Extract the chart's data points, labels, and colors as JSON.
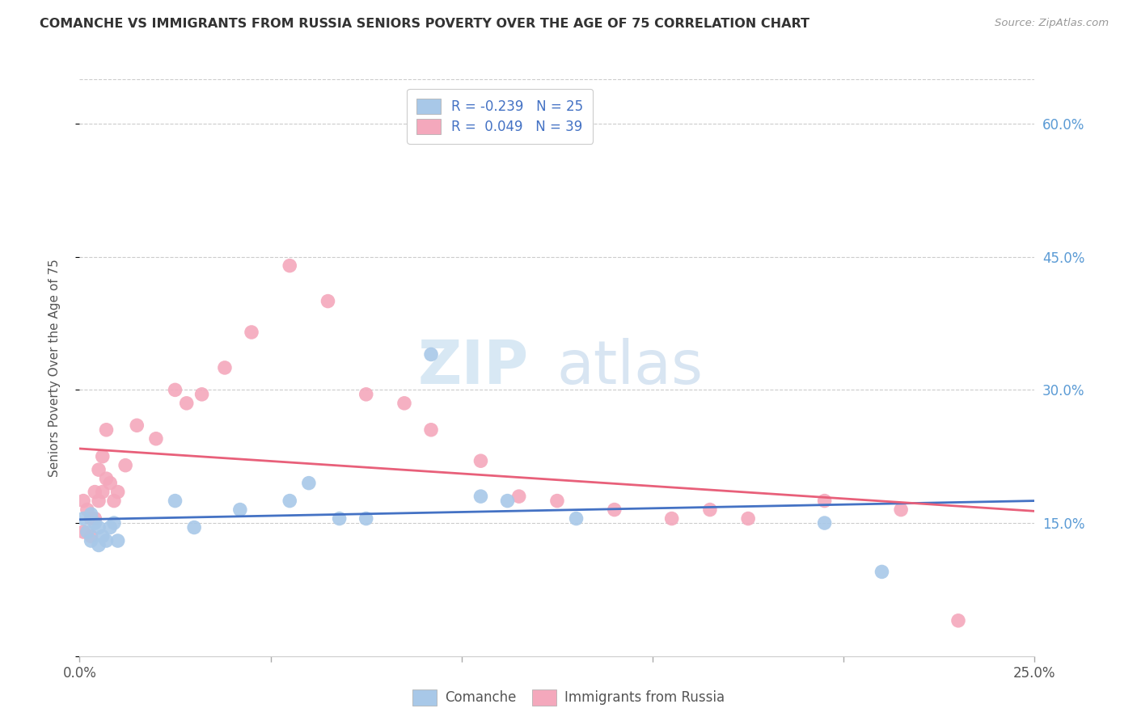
{
  "title": "COMANCHE VS IMMIGRANTS FROM RUSSIA SENIORS POVERTY OVER THE AGE OF 75 CORRELATION CHART",
  "source": "Source: ZipAtlas.com",
  "ylabel": "Seniors Poverty Over the Age of 75",
  "yticks": [
    0.0,
    0.15,
    0.3,
    0.45,
    0.6
  ],
  "ytick_labels": [
    "",
    "15.0%",
    "30.0%",
    "45.0%",
    "60.0%"
  ],
  "xmin": 0.0,
  "xmax": 0.25,
  "ymin": 0.0,
  "ymax": 0.65,
  "watermark_zip": "ZIP",
  "watermark_atlas": "atlas",
  "blue_color": "#a8c8e8",
  "pink_color": "#f4a8bc",
  "blue_line_color": "#4472c4",
  "pink_line_color": "#e8607a",
  "title_color": "#333333",
  "source_color": "#999999",
  "right_tick_color": "#5b9bd5",
  "legend_box_color": "#e8f0fa",
  "comanche_x": [
    0.001,
    0.002,
    0.003,
    0.003,
    0.004,
    0.005,
    0.005,
    0.006,
    0.007,
    0.008,
    0.009,
    0.01,
    0.025,
    0.03,
    0.042,
    0.055,
    0.06,
    0.068,
    0.075,
    0.092,
    0.105,
    0.112,
    0.13,
    0.195,
    0.21
  ],
  "comanche_y": [
    0.155,
    0.14,
    0.13,
    0.16,
    0.15,
    0.145,
    0.125,
    0.135,
    0.13,
    0.145,
    0.15,
    0.13,
    0.175,
    0.145,
    0.165,
    0.175,
    0.195,
    0.155,
    0.155,
    0.34,
    0.18,
    0.175,
    0.155,
    0.15,
    0.095
  ],
  "russia_x": [
    0.001,
    0.001,
    0.002,
    0.003,
    0.003,
    0.004,
    0.004,
    0.005,
    0.005,
    0.006,
    0.006,
    0.007,
    0.007,
    0.008,
    0.009,
    0.01,
    0.012,
    0.015,
    0.02,
    0.025,
    0.028,
    0.032,
    0.038,
    0.045,
    0.055,
    0.065,
    0.075,
    0.085,
    0.092,
    0.105,
    0.115,
    0.125,
    0.14,
    0.155,
    0.165,
    0.175,
    0.195,
    0.215,
    0.23
  ],
  "russia_y": [
    0.175,
    0.14,
    0.165,
    0.135,
    0.155,
    0.155,
    0.185,
    0.175,
    0.21,
    0.185,
    0.225,
    0.2,
    0.255,
    0.195,
    0.175,
    0.185,
    0.215,
    0.26,
    0.245,
    0.3,
    0.285,
    0.295,
    0.325,
    0.365,
    0.44,
    0.4,
    0.295,
    0.285,
    0.255,
    0.22,
    0.18,
    0.175,
    0.165,
    0.155,
    0.165,
    0.155,
    0.175,
    0.165,
    0.04
  ]
}
